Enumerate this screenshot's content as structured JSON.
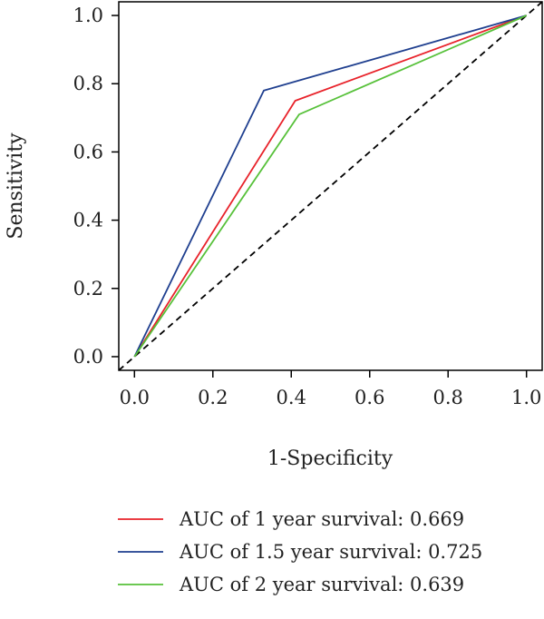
{
  "chart_data": {
    "type": "line",
    "title": "",
    "xlabel": "1-Specificity",
    "ylabel": "Sensitivity",
    "xlim": [
      -0.04,
      1.04
    ],
    "ylim": [
      -0.04,
      1.04
    ],
    "xticks": [
      0.0,
      0.2,
      0.4,
      0.6,
      0.8,
      1.0
    ],
    "yticks": [
      0.0,
      0.2,
      0.4,
      0.6,
      0.8,
      1.0
    ],
    "xtick_labels": [
      "0.0",
      "0.2",
      "0.4",
      "0.6",
      "0.8",
      "1.0"
    ],
    "ytick_labels": [
      "0.0",
      "0.2",
      "0.4",
      "0.6",
      "0.8",
      "1.0"
    ],
    "grid": false,
    "legend_position": "bottom",
    "reference_line": {
      "style": "dashed",
      "color": "#000000",
      "x": [
        -0.04,
        1.04
      ],
      "y": [
        -0.04,
        1.04
      ]
    },
    "series": [
      {
        "name": "AUC of 1 year survival: 0.669",
        "color": "#e8222a",
        "x": [
          0.0,
          0.41,
          1.0
        ],
        "y": [
          0.0,
          0.75,
          1.0
        ]
      },
      {
        "name": "AUC of 1.5 year survival: 0.725",
        "color": "#1f3f8f",
        "x": [
          0.0,
          0.33,
          1.0
        ],
        "y": [
          0.0,
          0.78,
          1.0
        ]
      },
      {
        "name": "AUC of 2 year survival: 0.639",
        "color": "#57c13a",
        "x": [
          0.0,
          0.42,
          1.0
        ],
        "y": [
          0.0,
          0.71,
          1.0
        ]
      }
    ]
  }
}
